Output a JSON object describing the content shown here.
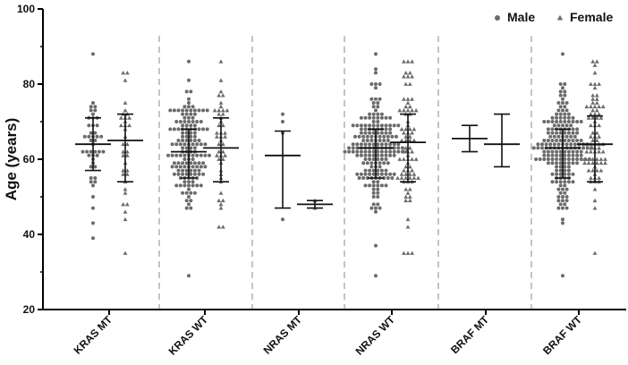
{
  "chart_data": {
    "type": "scatter",
    "ylabel": "Age (years)",
    "ylim": [
      20,
      100
    ],
    "yticks": [
      20,
      40,
      60,
      80,
      100
    ],
    "categories": [
      "KRAS MT",
      "KRAS WT",
      "NRAS MT",
      "NRAS WT",
      "BRAF MT",
      "BRAF WT"
    ],
    "legend": {
      "position": "top-right",
      "entries": [
        "Male",
        "Female"
      ]
    },
    "colors": {
      "points": "#6b6b6b",
      "summary": "#111111",
      "separator": "#888888"
    },
    "groups": [
      {
        "category": "KRAS MT",
        "series": "Male",
        "mean": 64,
        "sd_low": 57,
        "sd_high": 71,
        "min": 39,
        "max": 88,
        "n": 45
      },
      {
        "category": "KRAS MT",
        "series": "Female",
        "mean": 65,
        "sd_low": 54,
        "sd_high": 72,
        "min": 35,
        "max": 83,
        "n": 35
      },
      {
        "category": "KRAS WT",
        "series": "Male",
        "mean": 62,
        "sd_low": 55,
        "sd_high": 68,
        "min": 29,
        "max": 86,
        "n": 150
      },
      {
        "category": "KRAS WT",
        "series": "Female",
        "mean": 63,
        "sd_low": 54,
        "sd_high": 71,
        "min": 42,
        "max": 86,
        "n": 45
      },
      {
        "category": "NRAS MT",
        "series": "Male",
        "mean": 61,
        "sd_low": 47,
        "sd_high": 67.5,
        "min": 44,
        "max": 72,
        "n": 4
      },
      {
        "category": "NRAS MT",
        "series": "Female",
        "mean": 48,
        "sd_low": 47,
        "sd_high": 49,
        "min": 47,
        "max": 49,
        "n": 2
      },
      {
        "category": "NRAS WT",
        "series": "Male",
        "mean": 63,
        "sd_low": 55,
        "sd_high": 68,
        "min": 29,
        "max": 88,
        "n": 190
      },
      {
        "category": "NRAS WT",
        "series": "Female",
        "mean": 64.5,
        "sd_low": 54,
        "sd_high": 72,
        "min": 35,
        "max": 86,
        "n": 80
      },
      {
        "category": "BRAF MT",
        "series": "Male",
        "mean": 65.5,
        "sd_low": 62,
        "sd_high": 69,
        "min": 62,
        "max": 69,
        "n": 0
      },
      {
        "category": "BRAF MT",
        "series": "Female",
        "mean": 64,
        "sd_low": 58,
        "sd_high": 72,
        "min": 58,
        "max": 72,
        "n": 0
      },
      {
        "category": "BRAF WT",
        "series": "Male",
        "mean": 63,
        "sd_low": 55,
        "sd_high": 68,
        "min": 29,
        "max": 88,
        "n": 190
      },
      {
        "category": "BRAF WT",
        "series": "Female",
        "mean": 64,
        "sd_low": 54,
        "sd_high": 71.5,
        "min": 35,
        "max": 86,
        "n": 80
      }
    ]
  }
}
